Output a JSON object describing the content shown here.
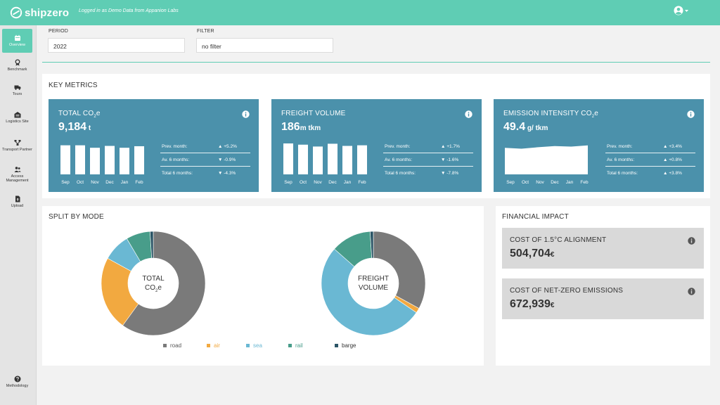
{
  "app": {
    "brand": "shipzero",
    "logged_in": "Logged in as Demo Data from Appanion Labs"
  },
  "colors": {
    "accent": "#5fcdb4",
    "card": "#4b91ab",
    "road": "#7a7a7a",
    "air": "#f2a940",
    "sea": "#6ab8d3",
    "rail": "#489d8a",
    "barge": "#2b5566"
  },
  "sidebar": {
    "items": [
      {
        "label": "Overview",
        "icon": "calendar-icon",
        "active": true
      },
      {
        "label": "Benchmark",
        "icon": "award-icon"
      },
      {
        "label": "Tours",
        "icon": "truck-icon"
      },
      {
        "label": "Logistics Site",
        "icon": "warehouse-icon"
      },
      {
        "label": "Transport Partner",
        "icon": "network-icon"
      },
      {
        "label": "Access Management",
        "icon": "users-icon"
      },
      {
        "label": "Upload",
        "icon": "file-upload-icon"
      }
    ],
    "bottom": {
      "label": "Methodology",
      "icon": "question-circle-icon"
    }
  },
  "filters": {
    "period_label": "PERIOD",
    "period_value": "2022",
    "filter_label": "FILTER",
    "filter_value": "no filter"
  },
  "key_metrics": {
    "title": "KEY METRICS",
    "cards": [
      {
        "title_main": "TOTAL CO",
        "title_sub": "2",
        "title_tail": "e",
        "value": "9,184",
        "unit": " t",
        "months": [
          "Sep",
          "Oct",
          "Nov",
          "Dec",
          "Jan",
          "Feb"
        ],
        "bars": [
          0.94,
          0.94,
          0.86,
          0.92,
          0.86,
          0.91
        ],
        "stats": [
          {
            "label": "Prev. month:",
            "arrow": "▲",
            "value": "+5.2%"
          },
          {
            "label": "Av. 6 months:",
            "arrow": "▼",
            "value": "-0.9%"
          },
          {
            "label": "Total 6 months:",
            "arrow": "▼",
            "value": "-4.3%"
          }
        ]
      },
      {
        "title_main": "FREIGHT VOLUME",
        "title_sub": "",
        "title_tail": "",
        "value": "186",
        "unit": "m tkm",
        "months": [
          "Sep",
          "Oct",
          "Nov",
          "Dec",
          "Jan",
          "Feb"
        ],
        "bars": [
          1.0,
          0.96,
          0.9,
          0.99,
          0.92,
          0.94
        ],
        "stats": [
          {
            "label": "Prev. month:",
            "arrow": "▲",
            "value": "+1.7%"
          },
          {
            "label": "Av. 6 months:",
            "arrow": "▼",
            "value": "-1.6%"
          },
          {
            "label": "Total 6 months:",
            "arrow": "▼",
            "value": "-7.8%"
          }
        ]
      },
      {
        "title_main": "EMISSION INTENSITY CO",
        "title_sub": "2",
        "title_tail": "e",
        "value": "49.4",
        "unit": " g/ tkm",
        "months": [
          "Sep",
          "Oct",
          "Nov",
          "Dec",
          "Jan",
          "Feb"
        ],
        "area": [
          0.9,
          0.87,
          0.92,
          0.96,
          0.94,
          0.98
        ],
        "stats": [
          {
            "label": "Prev. month:",
            "arrow": "▲",
            "value": "+3.4%"
          },
          {
            "label": "Av. 6 months:",
            "arrow": "▲",
            "value": "+0.8%"
          },
          {
            "label": "Total 6 months:",
            "arrow": "▲",
            "value": "+3.8%"
          }
        ]
      }
    ]
  },
  "split": {
    "title": "SPLIT BY MODE",
    "donut1": {
      "line1": "TOTAL",
      "line2_main": "CO",
      "line2_sub": "2",
      "line2_tail": "e",
      "shares": {
        "road": 0.6,
        "air": 0.23,
        "sea": 0.085,
        "rail": 0.075,
        "barge": 0.01
      }
    },
    "donut2": {
      "line1": "FREIGHT",
      "line2": "VOLUME",
      "shares": {
        "road": 0.33,
        "air": 0.015,
        "sea": 0.52,
        "rail": 0.125,
        "barge": 0.01
      }
    },
    "legend": [
      {
        "key": "road",
        "label": "road"
      },
      {
        "key": "air",
        "label": "air"
      },
      {
        "key": "sea",
        "label": "sea"
      },
      {
        "key": "rail",
        "label": "rail"
      },
      {
        "key": "barge",
        "label": "barge"
      }
    ]
  },
  "financial": {
    "title": "FINANCIAL IMPACT",
    "cards": [
      {
        "title": "COST OF 1.5°C ALIGNMENT",
        "value": "504,704",
        "unit": "€"
      },
      {
        "title": "COST OF NET-ZERO EMISSIONS",
        "value": "672,939",
        "unit": "€"
      }
    ]
  }
}
